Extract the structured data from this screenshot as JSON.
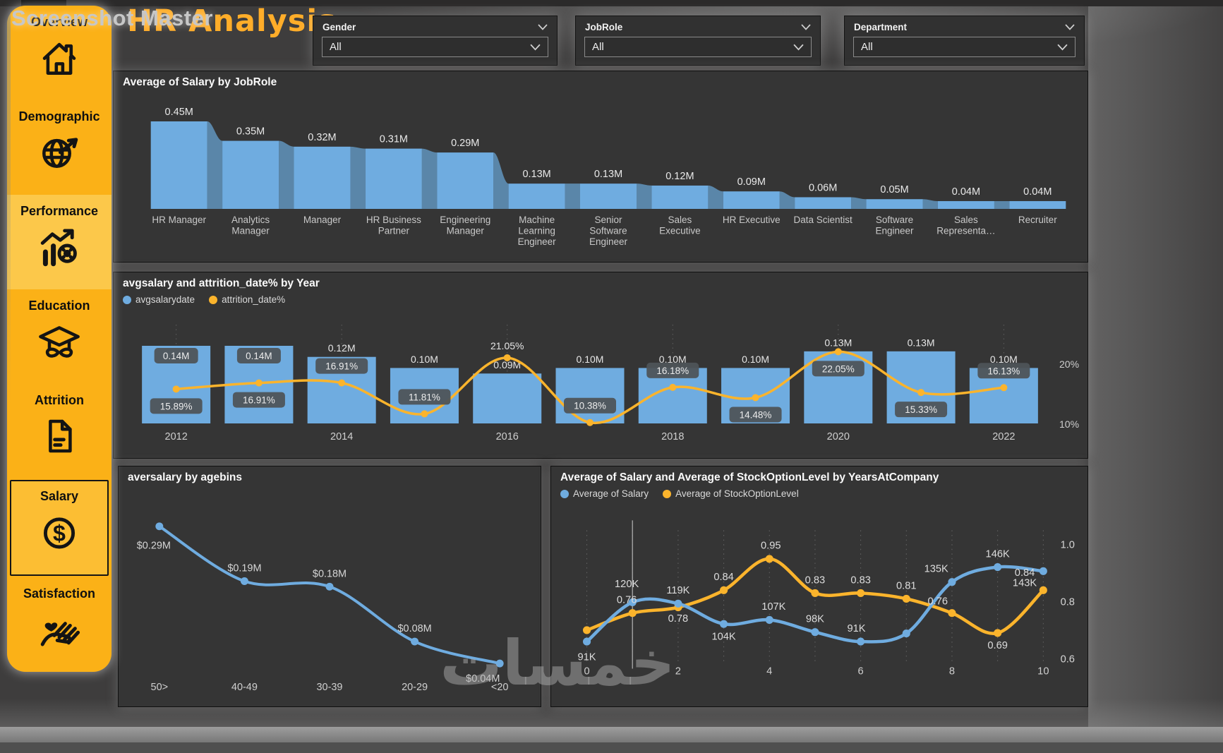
{
  "watermarks": {
    "top": "Screenshot Master",
    "bottom": "خمسات"
  },
  "header": {
    "title": "HR Analysis"
  },
  "sidebar": {
    "items": [
      {
        "label": "Overview",
        "icon": "home-icon",
        "state": "normal"
      },
      {
        "label": "Demographic",
        "icon": "globe-cursor-icon",
        "state": "normal"
      },
      {
        "label": "Performance",
        "icon": "chart-target-icon",
        "state": "highlighted"
      },
      {
        "label": "Education",
        "icon": "graduation-cap-icon",
        "state": "normal"
      },
      {
        "label": "Attrition",
        "icon": "document-icon",
        "state": "normal"
      },
      {
        "label": "Salary",
        "icon": "dollar-circle-icon",
        "state": "selected"
      },
      {
        "label": "Satisfaction",
        "icon": "hand-heart-icon",
        "state": "normal"
      }
    ]
  },
  "filters": [
    {
      "label": "Gender",
      "value": "All"
    },
    {
      "label": "JobRole",
      "value": "All"
    },
    {
      "label": "Department",
      "value": "All"
    }
  ],
  "colors": {
    "accent_yellow": "#FBB117",
    "bar_blue": "#6FACE0",
    "ribbon_blue": "#5D8BB0",
    "line_orange": "#FBB42C",
    "callout_bg": "#4E5459",
    "card_bg": "#353535",
    "page_bg": "#3E3D3D",
    "title_orange": "#FFAD29"
  },
  "chart_data": [
    {
      "id": "salary-by-jobrole",
      "type": "bar",
      "variant": "ribbon",
      "title": "Average of Salary by JobRole",
      "categories": [
        "HR Manager",
        "Analytics Manager",
        "Manager",
        "HR Business Partner",
        "Engineering Manager",
        "Machine Learning Engineer",
        "Senior Software Engineer",
        "Sales Executive",
        "HR Executive",
        "Data Scientist",
        "Software Engineer",
        "Sales Representa…",
        "Recruiter"
      ],
      "values": [
        0.45,
        0.35,
        0.32,
        0.31,
        0.29,
        0.13,
        0.13,
        0.12,
        0.09,
        0.06,
        0.05,
        0.04,
        0.04
      ],
      "labels": [
        "0.45M",
        "0.35M",
        "0.32M",
        "0.31M",
        "0.29M",
        "0.13M",
        "0.13M",
        "0.12M",
        "0.09M",
        "0.06M",
        "0.05M",
        "0.04M",
        "0.04M"
      ],
      "ylim": [
        0,
        0.45
      ]
    },
    {
      "id": "salary-attrition-by-year",
      "type": "combo",
      "title": "avgsalary and attrition_date% by Year",
      "legend": [
        "avgsalarydate",
        "attrition_date%"
      ],
      "categories": [
        "2012",
        "2013",
        "2014",
        "2015",
        "2016",
        "2017",
        "2018",
        "2019",
        "2020",
        "2021",
        "2022"
      ],
      "x_tick_labels": [
        "2012",
        "2014",
        "2016",
        "2018",
        "2020",
        "2022"
      ],
      "series": [
        {
          "name": "avgsalarydate",
          "type": "bar",
          "values": [
            0.14,
            0.14,
            0.12,
            0.1,
            0.09,
            0.1,
            0.1,
            0.1,
            0.13,
            0.13,
            0.1
          ],
          "labels": [
            "0.14M",
            "0.14M",
            "0.12M",
            "0.10M",
            "0.09M",
            "0.10M",
            "0.10M",
            "0.10M",
            "0.13M",
            "0.13M",
            "0.10M"
          ]
        },
        {
          "name": "attrition_date%",
          "type": "line",
          "values": [
            15.89,
            16.91,
            16.91,
            11.81,
            21.05,
            10.38,
            16.18,
            14.48,
            22.05,
            15.33,
            16.13
          ],
          "labels": [
            "15.89%",
            "16.91%",
            "16.91%",
            "11.81%",
            "21.05%",
            "10.38%",
            "16.18%",
            "14.48%",
            "22.05%",
            "15.33%",
            "16.13%"
          ]
        }
      ],
      "y2_ticks": [
        "20%",
        "10%"
      ],
      "y2_range": [
        10,
        20
      ]
    },
    {
      "id": "aversalary-by-agebins",
      "type": "line",
      "title": "aversalary by agebins",
      "categories": [
        "50>",
        "40-49",
        "30-39",
        "20-29",
        "<20"
      ],
      "values": [
        0.29,
        0.19,
        0.18,
        0.08,
        0.04
      ],
      "labels": [
        "$0.29M",
        "$0.19M",
        "$0.18M",
        "$0.08M",
        "$0.04M"
      ]
    },
    {
      "id": "salary-stock-by-yearsatcompany",
      "type": "line",
      "title": "Average of Salary and Average of StockOptionLevel by YearsAtCompany",
      "legend": [
        "Average of Salary",
        "Average of StockOptionLevel"
      ],
      "x": [
        0,
        1,
        2,
        3,
        4,
        5,
        6,
        7,
        8,
        9,
        10
      ],
      "x_tick_labels": [
        "0",
        "2",
        "4",
        "6",
        "8",
        "10"
      ],
      "series": [
        {
          "name": "Average of Salary",
          "unit": "K",
          "values": [
            91,
            120,
            119,
            104,
            107,
            98,
            91,
            97,
            135,
            146,
            143
          ],
          "labels": [
            "91K",
            "120K",
            "119K",
            "104K",
            "107K",
            "98K",
            "91K",
            "",
            "135K",
            "146K",
            "143K"
          ]
        },
        {
          "name": "Average of StockOptionLevel",
          "values": [
            0.7,
            0.76,
            0.78,
            0.84,
            0.95,
            0.83,
            0.83,
            0.81,
            0.76,
            0.69,
            0.84
          ],
          "labels": [
            "",
            "0.76",
            "0.78",
            "0.84",
            "0.95",
            "0.83",
            "0.83",
            "0.81",
            "0.76",
            "0.69",
            "0.84"
          ]
        }
      ],
      "y2_ticks": [
        "1.0",
        "0.8",
        "0.6"
      ],
      "y2_range": [
        0.6,
        1.0
      ]
    }
  ]
}
